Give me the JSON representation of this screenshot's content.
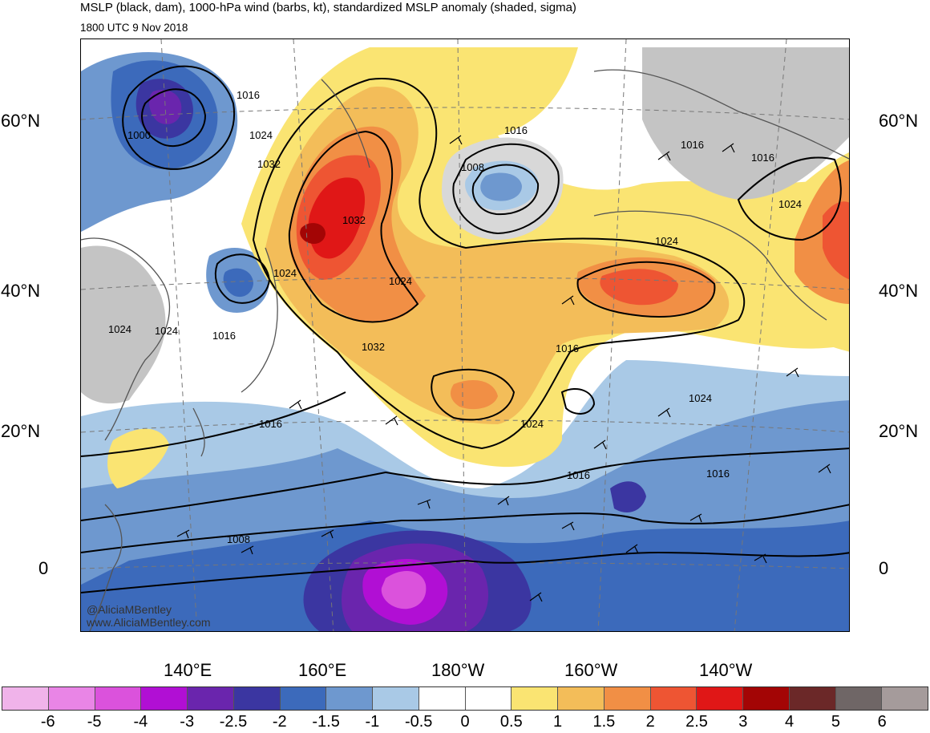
{
  "header": {
    "title": "MSLP (black, dam), 1000-hPa wind (barbs, kt), standardized MSLP anomaly (shaded, sigma)",
    "subtitle": "1800 UTC 9 Nov 2018"
  },
  "axes": {
    "lat_labels_left": [
      "60°N",
      "40°N",
      "20°N",
      "0"
    ],
    "lat_labels_right": [
      "60°N",
      "40°N",
      "20°N",
      "0"
    ],
    "lon_labels": [
      "140°E",
      "160°E",
      "180°W",
      "160°W",
      "140°W"
    ]
  },
  "isobar_labels": [
    "1000",
    "1016",
    "1024",
    "1032",
    "1032",
    "1024",
    "1008",
    "1016",
    "1024",
    "1016",
    "1016",
    "1024",
    "1024",
    "1024",
    "1024",
    "1016",
    "1032",
    "1024",
    "1016",
    "1016",
    "1024",
    "1016",
    "1016",
    "1008"
  ],
  "credit": {
    "handle": "@AliciaMBentley",
    "site": "www.AliciaMBentley.com"
  },
  "colorbar": {
    "colors": [
      "#f0b3ea",
      "#e985e6",
      "#db52dc",
      "#b10fd4",
      "#6a25ad",
      "#3b36a1",
      "#3c6abb",
      "#6e98cf",
      "#a9c9e6",
      "#ffffff",
      "#ffffff",
      "#fae472",
      "#f3bd59",
      "#f18f45",
      "#ee5533",
      "#e01717",
      "#a30505",
      "#6b2828",
      "#6f6666",
      "#a59b9b"
    ],
    "labels": [
      "-6",
      "-5",
      "-4",
      "-3",
      "-2.5",
      "-2",
      "-1.5",
      "-1",
      "-0.5",
      "0",
      "0.5",
      "1",
      "1.5",
      "2",
      "2.5",
      "3",
      "4",
      "5",
      "6"
    ]
  }
}
